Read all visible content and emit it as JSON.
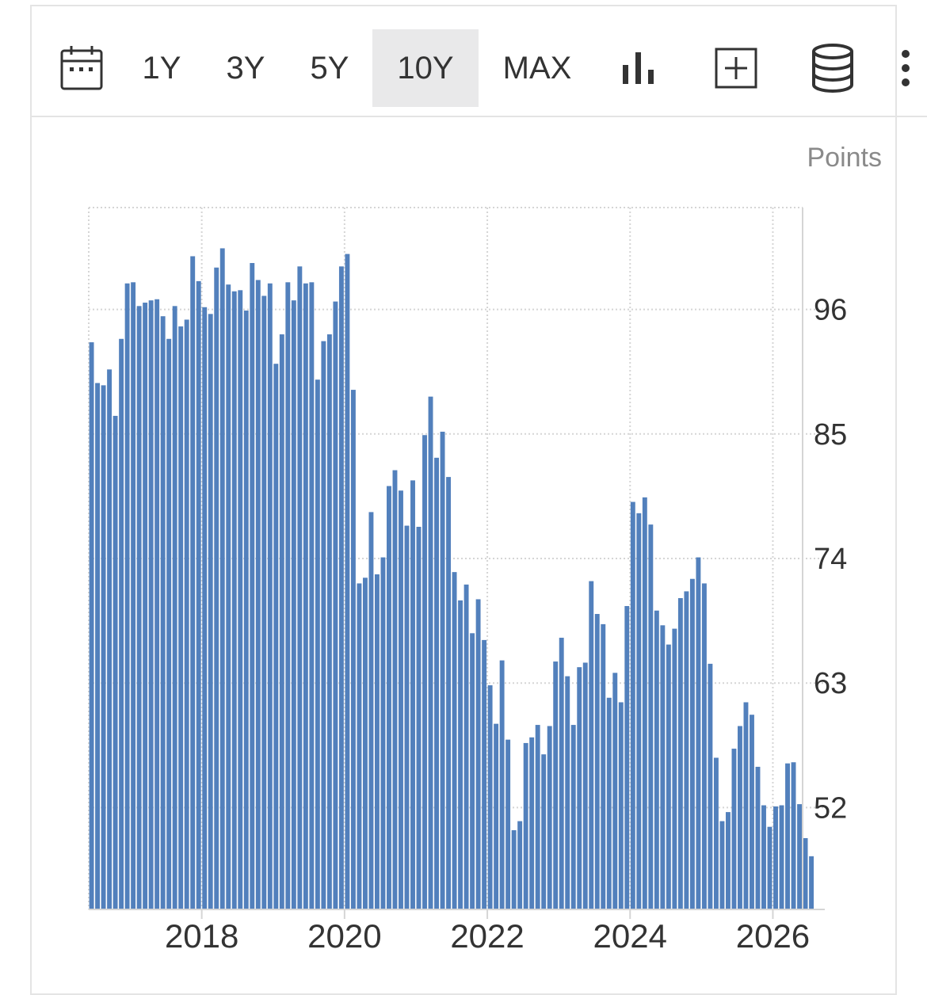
{
  "toolbar": {
    "ranges": [
      {
        "label": "1Y",
        "active": false
      },
      {
        "label": "3Y",
        "active": false
      },
      {
        "label": "5Y",
        "active": false
      },
      {
        "label": "10Y",
        "active": true
      },
      {
        "label": "MAX",
        "active": false
      }
    ],
    "icons": [
      "calendar-icon",
      "bar-chart-icon",
      "add-box-icon",
      "database-icon",
      "more-vertical-icon"
    ]
  },
  "colors": {
    "bar": "#5280bc",
    "grid": "#d5d5d5",
    "axis": "#d5d5d5",
    "active_bg": "#e9e9ea"
  },
  "chart_data": {
    "type": "bar",
    "unit_label": "Points",
    "ylim": [
      43,
      105
    ],
    "yticks": [
      52,
      63,
      74,
      85,
      96
    ],
    "xticks": [
      "2018",
      "2020",
      "2022",
      "2024",
      "2026"
    ],
    "x_start": "2016-06",
    "x_end": "2026-05",
    "grid": true,
    "y_axis_side": "right",
    "values": [
      93.1,
      89.5,
      89.3,
      90.7,
      86.6,
      93.4,
      98.3,
      98.4,
      96.3,
      96.6,
      96.8,
      96.9,
      95.4,
      93.4,
      96.3,
      94.5,
      95.1,
      100.7,
      98.5,
      96.2,
      95.6,
      99.7,
      101.4,
      98.2,
      97.6,
      97.7,
      95.9,
      100.1,
      98.6,
      97.2,
      98.3,
      91.2,
      93.8,
      98.4,
      96.8,
      99.8,
      98.3,
      98.4,
      89.8,
      93.2,
      93.8,
      96.7,
      99.8,
      100.9,
      88.9,
      71.8,
      72.3,
      78.1,
      72.6,
      74.1,
      80.4,
      81.8,
      80.0,
      76.9,
      80.9,
      76.8,
      84.9,
      88.3,
      82.9,
      85.2,
      81.2,
      72.8,
      70.3,
      71.7,
      67.4,
      70.4,
      66.8,
      62.8,
      59.4,
      65.0,
      58.0,
      50.0,
      50.8,
      57.7,
      58.2,
      59.3,
      56.7,
      59.2,
      64.9,
      67.0,
      63.6,
      59.3,
      64.4,
      64.8,
      72.0,
      69.1,
      68.2,
      61.7,
      63.9,
      61.3,
      69.8,
      79.0,
      78.0,
      79.4,
      77.0,
      69.4,
      68.1,
      66.4,
      67.8,
      70.5,
      71.1,
      72.2,
      74.1,
      71.8,
      64.7,
      56.4,
      50.8,
      51.6,
      57.2,
      59.2,
      61.3,
      60.2,
      55.6,
      52.2,
      50.3,
      52.1,
      52.2,
      55.9,
      56.0,
      52.3,
      49.3,
      47.7
    ]
  }
}
